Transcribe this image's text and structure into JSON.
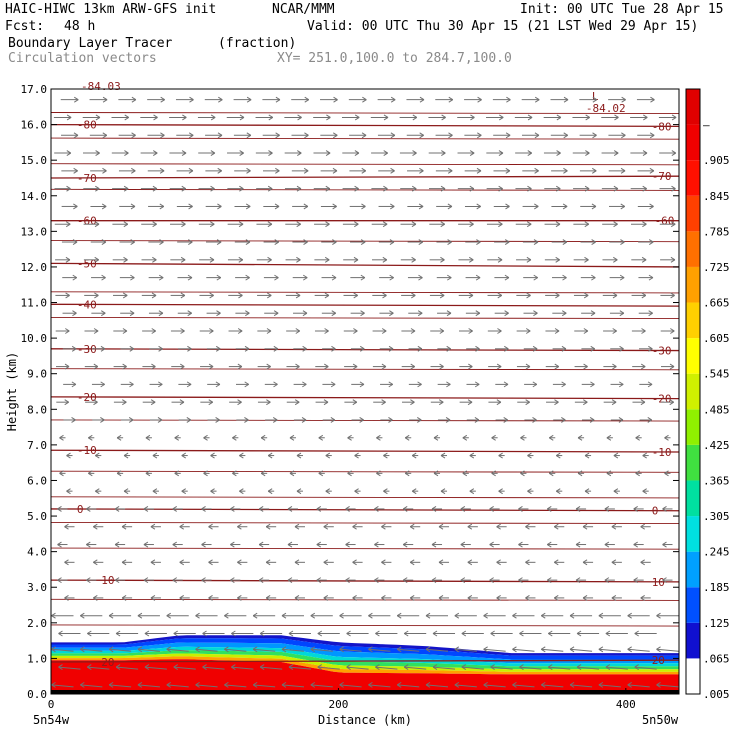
{
  "header": {
    "model": "HAIC-HIWC 13km ARW-GFS init",
    "org": "NCAR/MMM",
    "init": "Init: 00 UTC Tue 28 Apr 15",
    "fcst_label": "Fcst:",
    "fcst_value": "48 h",
    "valid": "Valid: 00 UTC Thu 30 Apr 15 (21 LST Wed 29 Apr 15)",
    "field": "Boundary Layer Tracer",
    "field_units": "(fraction)",
    "vectors": "Circulation vectors",
    "xy": "XY= 251.0,100.0 to 284.7,100.0"
  },
  "colors": {
    "contour": "#8b1a1a",
    "vector": "#707070",
    "frame": "#000000"
  },
  "chart_data": {
    "type": "heatmap",
    "xlabel": "Distance (km)",
    "ylabel": "Height (km)",
    "xlim": [
      0,
      437
    ],
    "ylim": [
      0,
      17
    ],
    "x_ticks": [
      "0",
      "200",
      "400"
    ],
    "x_tick_values": [
      0,
      200,
      400
    ],
    "x_end_labels": [
      "5n54w",
      "5n50w"
    ],
    "y_ticks": [
      "0.0",
      "1.0",
      "2.0",
      "3.0",
      "4.0",
      "5.0",
      "6.0",
      "7.0",
      "8.0",
      "9.0",
      "10.0",
      "11.0",
      "12.0",
      "13.0",
      "14.0",
      "15.0",
      "16.0",
      "17.0"
    ],
    "y_tick_values": [
      0,
      1,
      2,
      3,
      4,
      5,
      6,
      7,
      8,
      9,
      10,
      11,
      12,
      13,
      14,
      15,
      16,
      17
    ],
    "colorbar": {
      "labels": [
        ".005",
        ".065",
        ".125",
        ".185",
        ".245",
        ".305",
        ".365",
        ".425",
        ".485",
        ".545",
        ".605",
        ".665",
        ".725",
        ".785",
        ".845",
        ".905",
        "–"
      ],
      "colors": [
        "#ffffff",
        "#1010d0",
        "#0050ff",
        "#00a0ff",
        "#00e0e0",
        "#00e0a0",
        "#40e040",
        "#90f000",
        "#d0f000",
        "#ffff00",
        "#ffd000",
        "#ffa000",
        "#ff7000",
        "#ff4000",
        "#ff1000",
        "#f00000",
        "#e00000"
      ]
    },
    "tracer_layer": {
      "x": [
        0,
        50,
        90,
        160,
        200,
        260,
        320,
        437
      ],
      "top_km": [
        1.45,
        1.45,
        1.65,
        1.65,
        1.45,
        1.35,
        1.15,
        1.15
      ],
      "red_top_km": [
        0.95,
        0.95,
        0.98,
        0.9,
        0.6,
        0.58,
        0.55,
        0.55
      ]
    },
    "temperature_contours": [
      {
        "value": -80,
        "label": "-80",
        "left_y": 16.0,
        "right_y": 15.95
      },
      {
        "value": -70,
        "label": "-70",
        "left_y": 14.5,
        "right_y": 14.55
      },
      {
        "value": -60,
        "label": "-60",
        "left_y": 13.3,
        "right_y": 13.3
      },
      {
        "value": -50,
        "label": "-50",
        "left_y": 12.1,
        "right_y": 12.0
      },
      {
        "value": -40,
        "label": "-40",
        "left_y": 10.95,
        "right_y": 10.9
      },
      {
        "value": -30,
        "label": "-30",
        "left_y": 9.7,
        "right_y": 9.65
      },
      {
        "value": -20,
        "label": "-20",
        "left_y": 8.35,
        "right_y": 8.3
      },
      {
        "value": -10,
        "label": "-10",
        "left_y": 6.85,
        "right_y": 6.8
      },
      {
        "value": 0,
        "label": "0",
        "left_y": 5.2,
        "right_y": 5.15
      },
      {
        "value": 10,
        "label": "10",
        "left_y": 3.2,
        "right_y": 3.15
      },
      {
        "value": 20,
        "label": "20",
        "left_y": 0.9,
        "right_y": 0.95
      }
    ],
    "min_label": {
      "marker": "L",
      "value": "-84.02",
      "x": 375,
      "y": 16.75
    },
    "top_left_partial_label": "-84.03"
  }
}
